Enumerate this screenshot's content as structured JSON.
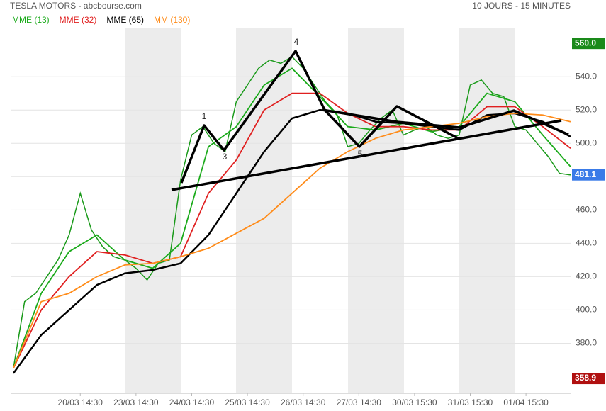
{
  "chart_data": {
    "type": "line",
    "title": "TESLA MOTORS - abcbourse.com",
    "subtitle": "10 JOURS - 15 MINUTES",
    "xlim": [
      -0.05,
      10
    ],
    "ylim": [
      350,
      569
    ],
    "grid": true,
    "xticks": [
      {
        "value": 1.2,
        "label": "20/03 14:30"
      },
      {
        "value": 2.2,
        "label": "23/03 14:30"
      },
      {
        "value": 3.2,
        "label": "24/03 14:30"
      },
      {
        "value": 4.2,
        "label": "25/03 14:30"
      },
      {
        "value": 5.2,
        "label": "26/03 14:30"
      },
      {
        "value": 6.2,
        "label": "27/03 14:30"
      },
      {
        "value": 7.2,
        "label": "30/03 15:30"
      },
      {
        "value": 8.2,
        "label": "31/03 15:30"
      },
      {
        "value": 9.2,
        "label": "01/04 15:30"
      }
    ],
    "yticks": [
      {
        "value": 380,
        "label": "380.0"
      },
      {
        "value": 400,
        "label": "400.0"
      },
      {
        "value": 420,
        "label": "420.0"
      },
      {
        "value": 440,
        "label": "440.0"
      },
      {
        "value": 460,
        "label": "460.0"
      },
      {
        "value": 480,
        "label": "480.0"
      },
      {
        "value": 500,
        "label": "500.0"
      },
      {
        "value": 520,
        "label": "520.0"
      },
      {
        "value": 540,
        "label": "540.0"
      }
    ],
    "price": {
      "color": "#1a9a1a",
      "x": [
        0,
        0.2,
        0.4,
        0.6,
        0.8,
        1.0,
        1.2,
        1.4,
        1.6,
        1.8,
        2.0,
        2.2,
        2.4,
        2.6,
        2.8,
        3.0,
        3.2,
        3.4,
        3.6,
        3.8,
        4.0,
        4.2,
        4.4,
        4.6,
        4.8,
        5.0,
        5.2,
        5.4,
        5.6,
        5.8,
        6.0,
        6.2,
        6.4,
        6.6,
        6.8,
        7.0,
        7.2,
        7.4,
        7.6,
        7.8,
        8.0,
        8.2,
        8.4,
        8.6,
        8.8,
        9.0,
        9.2,
        9.4,
        9.6,
        9.8,
        10.0
      ],
      "values": [
        365,
        405,
        410,
        420,
        430,
        445,
        470,
        448,
        438,
        432,
        430,
        425,
        418,
        428,
        430,
        478,
        505,
        510,
        500,
        495,
        525,
        535,
        545,
        550,
        548,
        552,
        545,
        535,
        525,
        518,
        498,
        500,
        508,
        515,
        520,
        505,
        508,
        510,
        505,
        503,
        505,
        535,
        538,
        530,
        528,
        510,
        508,
        500,
        492,
        482,
        481
      ]
    },
    "ma_x": [
      0,
      0.5,
      1.0,
      1.5,
      2.0,
      2.5,
      3.0,
      3.5,
      4.0,
      4.5,
      5.0,
      5.5,
      6.0,
      6.5,
      7.0,
      7.5,
      8.0,
      8.5,
      9.0,
      9.5,
      10.0
    ],
    "series": [
      {
        "name": "MME (13)",
        "color": "#1aaa1a",
        "values": [
          365,
          410,
          435,
          445,
          430,
          425,
          440,
          498,
          510,
          535,
          545,
          528,
          510,
          508,
          512,
          507,
          510,
          530,
          525,
          505,
          486
        ]
      },
      {
        "name": "MME (32)",
        "color": "#e02020",
        "values": [
          365,
          400,
          420,
          435,
          433,
          428,
          432,
          470,
          490,
          520,
          530,
          530,
          518,
          510,
          510,
          508,
          508,
          522,
          522,
          510,
          497
        ]
      },
      {
        "name": "MME (65)",
        "color": "#000000",
        "values": [
          362,
          385,
          400,
          415,
          422,
          424,
          428,
          445,
          470,
          495,
          515,
          520,
          518,
          513,
          512,
          510,
          508,
          517,
          518,
          513,
          504
        ]
      },
      {
        "name": "MM (130)",
        "color": "#ff8c1a",
        "values": [
          365,
          405,
          410,
          420,
          427,
          428,
          432,
          437,
          446,
          455,
          470,
          485,
          495,
          503,
          508,
          510,
          512,
          516,
          518,
          517,
          513
        ]
      }
    ],
    "markers": [
      {
        "value": 560,
        "label": "560.0",
        "color": "#1a8a1a"
      },
      {
        "value": 481.1,
        "label": "481.1",
        "color": "#3a7be8"
      },
      {
        "value": 358.9,
        "label": "358.9",
        "color": "#b01010"
      }
    ],
    "annotations": [
      "1",
      "3",
      "4",
      "5"
    ]
  }
}
